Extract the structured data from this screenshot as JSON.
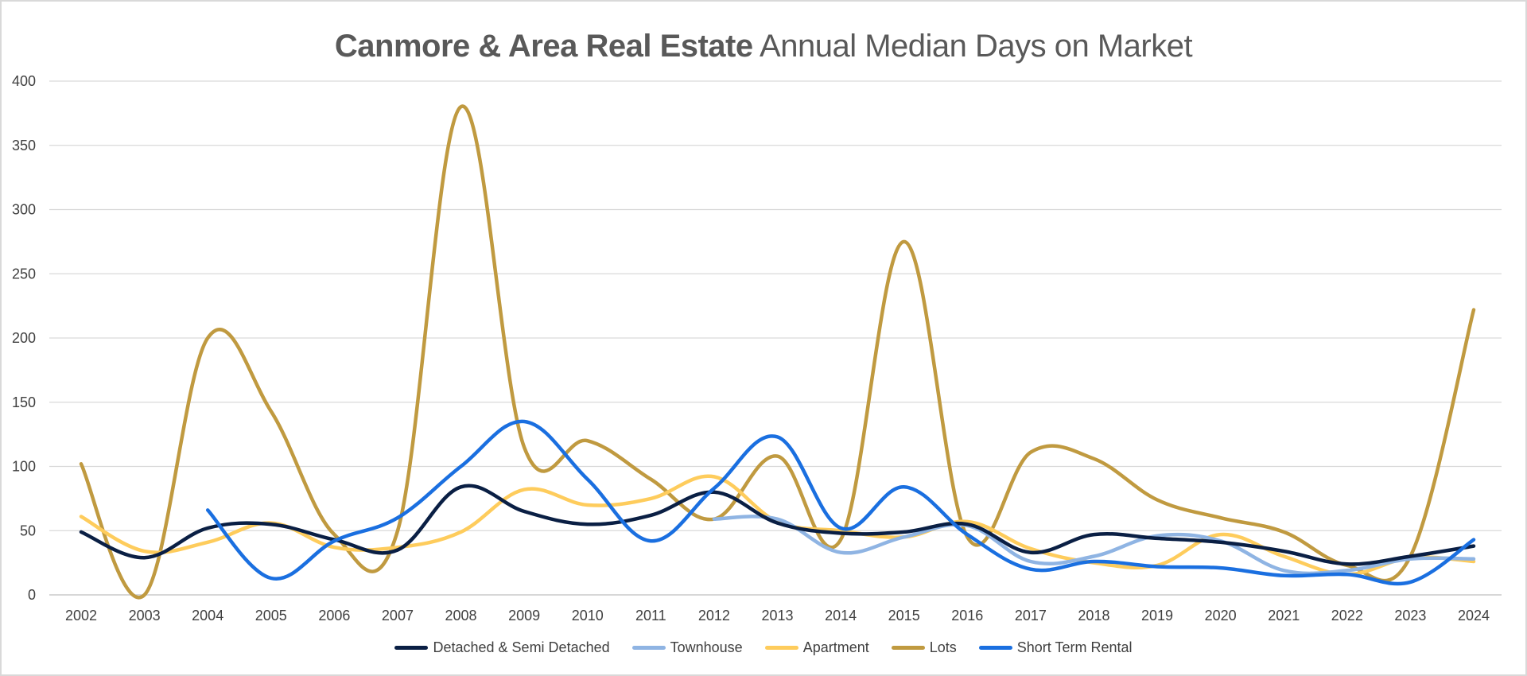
{
  "chart_data": {
    "type": "line",
    "title_bold": "Canmore & Area Real Estate",
    "title_rest": "Annual Median Days on Market",
    "xlabel": "",
    "ylabel": "",
    "ylim": [
      0,
      400
    ],
    "yticks": [
      0,
      50,
      100,
      150,
      200,
      250,
      300,
      350,
      400
    ],
    "grid": true,
    "legend_position": "bottom",
    "categories": [
      "2002",
      "2003",
      "2004",
      "2005",
      "2006",
      "2007",
      "2008",
      "2009",
      "2010",
      "2011",
      "2012",
      "2013",
      "2014",
      "2015",
      "2016",
      "2017",
      "2018",
      "2019",
      "2020",
      "2021",
      "2022",
      "2023",
      "2024"
    ],
    "series": [
      {
        "name": "Detached & Semi Detached",
        "color": "#0a1f44",
        "values": [
          49,
          29,
          52,
          55,
          43,
          35,
          84,
          65,
          55,
          62,
          80,
          56,
          48,
          49,
          55,
          33,
          47,
          44,
          41,
          34,
          24,
          30,
          38
        ]
      },
      {
        "name": "Townhouse",
        "color": "#8fb4e3",
        "values": [
          null,
          null,
          null,
          null,
          null,
          null,
          null,
          null,
          null,
          null,
          59,
          59,
          33,
          45,
          54,
          26,
          30,
          46,
          42,
          19,
          19,
          28,
          28
        ]
      },
      {
        "name": "Apartment",
        "color": "#fecc5c",
        "values": [
          61,
          34,
          41,
          56,
          37,
          37,
          49,
          82,
          70,
          75,
          92,
          57,
          50,
          45,
          57,
          36,
          25,
          23,
          47,
          30,
          16,
          29,
          26
        ]
      },
      {
        "name": "Lots",
        "color": "#c09a40",
        "values": [
          102,
          0,
          200,
          143,
          47,
          50,
          380,
          115,
          120,
          90,
          59,
          108,
          43,
          275,
          45,
          111,
          106,
          74,
          60,
          49,
          23,
          30,
          222
        ]
      },
      {
        "name": "Short Term Rental",
        "color": "#1a6fe0",
        "values": [
          null,
          null,
          66,
          13,
          42,
          60,
          100,
          135,
          90,
          42,
          83,
          123,
          52,
          84,
          47,
          20,
          26,
          22,
          21,
          15,
          16,
          10,
          43
        ]
      }
    ]
  }
}
